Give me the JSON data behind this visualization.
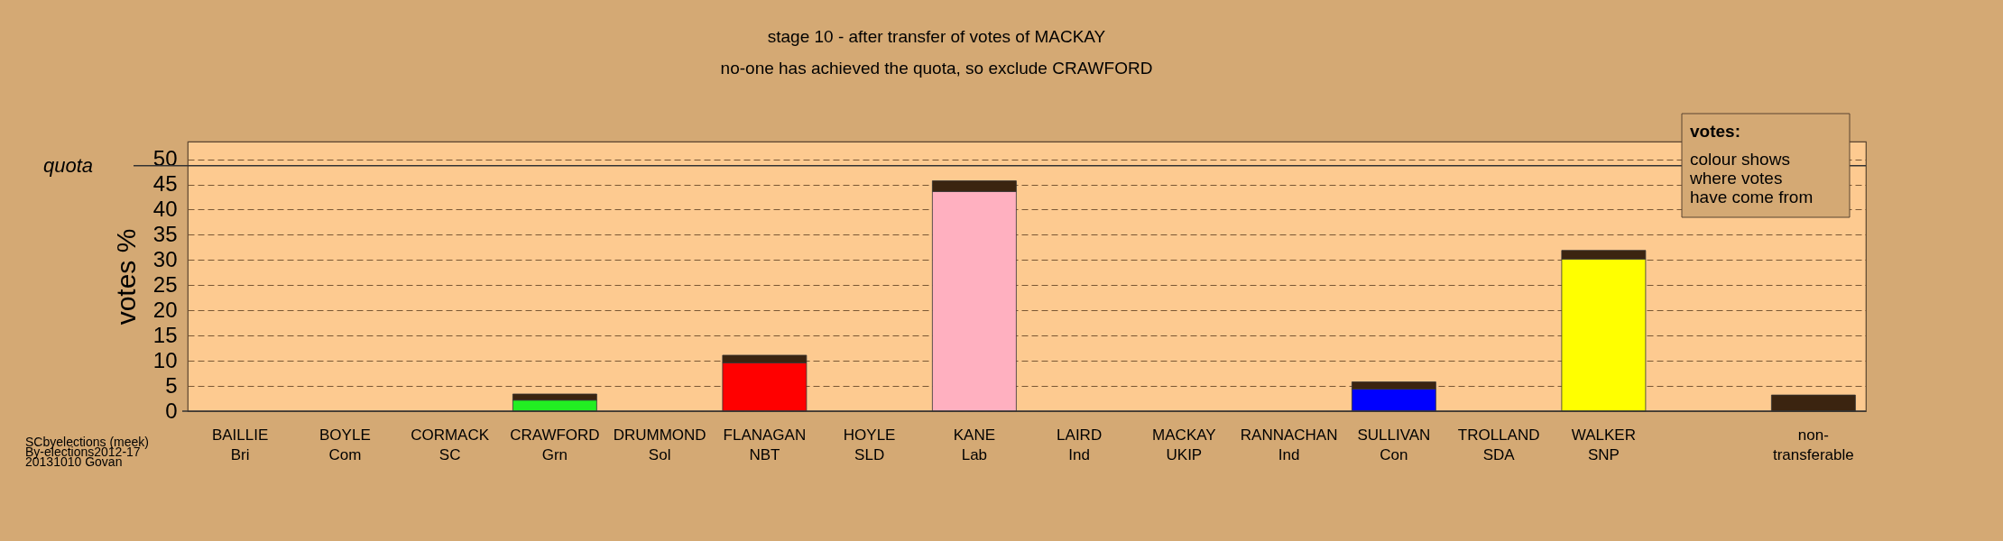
{
  "chart_data": {
    "type": "bar",
    "stacked": true,
    "title": "stage 10 - after transfer of votes of MACKAY",
    "subtitle": "no-one has achieved the quota, so exclude CRAWFORD",
    "ylabel": "votes %",
    "categories": [
      "BAILLIE\nBri",
      "BOYLE\nCom",
      "CORMACK\nSC",
      "CRAWFORD\nGrn",
      "DRUMMOND\nSol",
      "FLANAGAN\nNBT",
      "HOYLE\nSLD",
      "KANE\nLab",
      "LAIRD\nInd",
      "MACKAY\nUKIP",
      "RANNACHAN\nInd",
      "SULLIVAN\nCon",
      "TROLLAND\nSDA",
      "WALKER\nSNP",
      null,
      "non-\ntransferable"
    ],
    "series": [
      {
        "colors": [
          null,
          null,
          null,
          "#22ee22",
          null,
          "#ff0000",
          null,
          "#ffb0c0",
          null,
          null,
          null,
          "#0000ff",
          null,
          "#ffff00",
          null,
          null
        ],
        "values": [
          0,
          0,
          0,
          2.2,
          0,
          9.6,
          0,
          43.6,
          0,
          0,
          0,
          4.4,
          0,
          30.2,
          null,
          0
        ]
      },
      {
        "color": "#3b2410",
        "values": [
          0,
          0,
          0,
          1.2,
          0,
          1.5,
          0,
          2.1,
          0,
          0,
          0,
          1.4,
          0,
          1.7,
          null,
          3.2
        ]
      }
    ],
    "ylim": [
      0,
      53.5
    ],
    "yticks": [
      0,
      5,
      10,
      15,
      20,
      25,
      30,
      35,
      40,
      45,
      50
    ],
    "grid": "y",
    "ref_lines": [
      {
        "axis": "y",
        "value": 48.7,
        "label": "quota"
      }
    ],
    "annotations": [
      "SCbyelections (meek)",
      "By-elections2012-17",
      "20131010 Govan",
      "votes:",
      "colour shows",
      "where votes",
      "have come from"
    ]
  }
}
